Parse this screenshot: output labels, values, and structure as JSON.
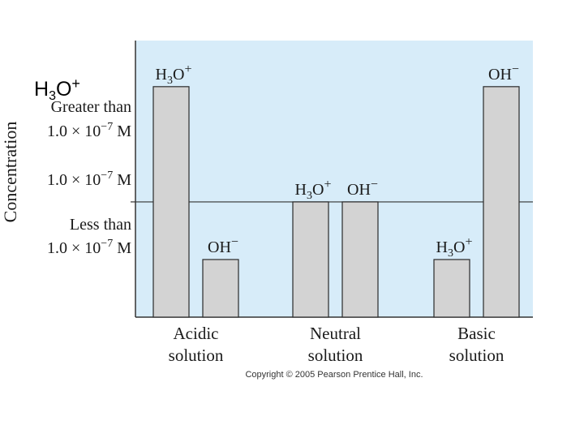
{
  "overlay": {
    "base": "H",
    "sub": "3",
    "mid": "O",
    "sup": "+"
  },
  "copyright": "Copyright © 2005 Pearson Prentice Hall, Inc.",
  "colors": {
    "plot_background": "#d7ecf9",
    "bar_fill": "#d3d3d3",
    "bar_stroke": "#2a2a2a",
    "axis": "#333333"
  },
  "chart_data": {
    "type": "bar",
    "ylabel": "Concentration",
    "y_levels": [
      {
        "key": "greater",
        "lines": [
          "Greater than",
          "1.0 × 10",
          "−7",
          " M"
        ],
        "value": 2
      },
      {
        "key": "equal",
        "lines": [
          "1.0 × 10",
          "−7",
          " M"
        ],
        "value": 1
      },
      {
        "key": "less",
        "lines": [
          "Less than",
          "1.0 × 10",
          "−7",
          " M"
        ],
        "value": 0.5
      }
    ],
    "ylim": [
      0,
      2.4
    ],
    "reference_line_value": 1,
    "categories": [
      {
        "label_line1": "Acidic",
        "label_line2": "solution"
      },
      {
        "label_line1": "Neutral",
        "label_line2": "solution"
      },
      {
        "label_line1": "Basic",
        "label_line2": "solution"
      }
    ],
    "series": [
      {
        "ion": "hydronium",
        "label_base": "H",
        "label_sub": "3",
        "label_mid": "O",
        "label_sup": "+",
        "values": [
          2,
          1,
          0.5
        ]
      },
      {
        "ion": "hydroxide",
        "label_base": "OH",
        "label_sub": "",
        "label_mid": "",
        "label_sup": "−",
        "values": [
          0.5,
          1,
          2
        ]
      }
    ],
    "grid": false,
    "legend": "none"
  }
}
